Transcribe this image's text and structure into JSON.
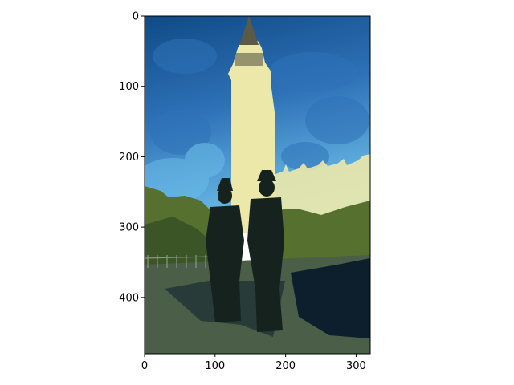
{
  "chart_data": {
    "type": "image",
    "title": "",
    "xlabel": "",
    "ylabel": "",
    "xlim": [
      0,
      320
    ],
    "ylim": [
      480,
      0
    ],
    "grid": false,
    "x_ticks": [
      {
        "value": 0,
        "label": "0"
      },
      {
        "value": 100,
        "label": "100"
      },
      {
        "value": 200,
        "label": "200"
      },
      {
        "value": 300,
        "label": "300"
      }
    ],
    "y_ticks": [
      {
        "value": 0,
        "label": "0"
      },
      {
        "value": 100,
        "label": "100"
      },
      {
        "value": 200,
        "label": "200"
      },
      {
        "value": 300,
        "label": "300"
      },
      {
        "value": 400,
        "label": "400"
      }
    ],
    "image_colors": {
      "sky_dark": "#0f4a86",
      "sky_mid": "#2f72b8",
      "sky_light": "#6bbde8",
      "tower": "#ece8aa",
      "tower_spire": "#5a5a46",
      "trees": "#56702f",
      "trees_dark": "#324a24",
      "ground": "#4a5e48",
      "shadow": "#0d1f2c",
      "figures": "#16221e"
    }
  }
}
